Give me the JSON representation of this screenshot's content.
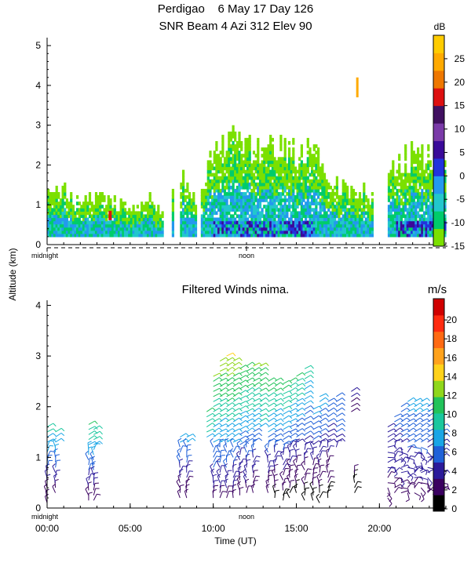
{
  "chart_data": [
    {
      "type": "heatmap",
      "title": "Perdigao    6 May 17 Day 126",
      "subtitle": "SNR Beam 4 Azi 312 Elev 90",
      "ylabel": "Altitude (km)",
      "y_ticks": [
        "0",
        "1",
        "2",
        "3",
        "4",
        "5"
      ],
      "ylim": [
        0,
        5.2
      ],
      "xlim_hours": [
        0,
        24
      ],
      "x_annotations": [
        "midnight",
        "noon"
      ],
      "colorbar": {
        "unit": "dB",
        "range": [
          -15,
          30
        ],
        "ticks": [
          "25",
          "20",
          "15",
          "10",
          "5",
          "0",
          "-5",
          "-10",
          "-15"
        ],
        "colors": [
          "#7be000",
          "#00cc6a",
          "#22c7cc",
          "#2399ee",
          "#2233dd",
          "#3a0a99",
          "#7a3aa8",
          "#401060",
          "#dd1010",
          "#ee7700",
          "#ffaa00",
          "#ffcc00"
        ]
      },
      "data_summary": {
        "echo_top_km_by_hour": [
          [
            0,
            1.4
          ],
          [
            1,
            1.4
          ],
          [
            2,
            1.1
          ],
          [
            3,
            1.2
          ],
          [
            4,
            1.1
          ],
          [
            5,
            1.0
          ],
          [
            6,
            1.2
          ],
          [
            7,
            0.8
          ],
          [
            8,
            2.0
          ],
          [
            9,
            1.1
          ],
          [
            10,
            2.6
          ],
          [
            11,
            2.8
          ],
          [
            12,
            2.7
          ],
          [
            13,
            2.6
          ],
          [
            14,
            2.5
          ],
          [
            15,
            2.4
          ],
          [
            16,
            2.5
          ],
          [
            17,
            1.6
          ],
          [
            18,
            1.5
          ],
          [
            19,
            1.4
          ],
          [
            20,
            1.1
          ],
          [
            21,
            2.3
          ],
          [
            22,
            2.4
          ],
          [
            23,
            2.4
          ]
        ],
        "strongest_layer_km": [
          0,
          0.8
        ],
        "strongest_values_db": [
          5,
          10
        ],
        "isolated_high_echo": {
          "hour": 18.6,
          "altitude_km": [
            3.7,
            4.2
          ],
          "db": 25
        }
      }
    },
    {
      "type": "heatmap",
      "title": "Filtered Winds nima.",
      "xlabel": "Time (UT)",
      "x_ticks": [
        "00:00",
        "05:00",
        "10:00",
        "15:00",
        "20:00"
      ],
      "xlim_hours": [
        0,
        24
      ],
      "x_annotations": [
        "midnight",
        "noon"
      ],
      "y_ticks": [
        "0",
        "1",
        "2",
        "3",
        "4"
      ],
      "ylim": [
        0,
        4.1
      ],
      "colorbar": {
        "unit": "m/s",
        "range": [
          0,
          22
        ],
        "ticks": [
          "20",
          "18",
          "16",
          "14",
          "12",
          "10",
          "8",
          "6",
          "4",
          "2",
          "0"
        ],
        "colors": [
          "#000000",
          "#3a0060",
          "#2b1a9a",
          "#1f60d8",
          "#19a5e6",
          "#1ac79e",
          "#22c35a",
          "#8fd71b",
          "#ffd21a",
          "#ffa21c",
          "#ff6a13",
          "#ff2b10",
          "#d00000"
        ]
      },
      "barb_groups": [
        {
          "hour": 0.0,
          "alt_from": 0.1,
          "alt_to": 1.6,
          "speed_from": 2,
          "speed_to": 10
        },
        {
          "hour": 0.5,
          "alt_from": 0.3,
          "alt_to": 1.55,
          "speed_from": 3,
          "speed_to": 10
        },
        {
          "hour": 2.5,
          "alt_from": 0.15,
          "alt_to": 1.65,
          "speed_from": 2,
          "speed_to": 11
        },
        {
          "hour": 2.8,
          "alt_from": 0.15,
          "alt_to": 1.6,
          "speed_from": 2,
          "speed_to": 11
        },
        {
          "hour": 8.0,
          "alt_from": 0.2,
          "alt_to": 1.4,
          "speed_from": 2,
          "speed_to": 8
        },
        {
          "hour": 8.4,
          "alt_from": 0.2,
          "alt_to": 1.4,
          "speed_from": 2,
          "speed_to": 8
        },
        {
          "hour": 9.6,
          "alt_from": 1.4,
          "alt_to": 1.9,
          "speed_from": 9,
          "speed_to": 11
        },
        {
          "hour": 10.0,
          "alt_from": 0.2,
          "alt_to": 2.6,
          "speed_from": 3,
          "speed_to": 13
        },
        {
          "hour": 10.4,
          "alt_from": 0.2,
          "alt_to": 2.9,
          "speed_from": 3,
          "speed_to": 14
        },
        {
          "hour": 10.8,
          "alt_from": 0.2,
          "alt_to": 3.05,
          "speed_from": 3,
          "speed_to": 15
        },
        {
          "hour": 11.2,
          "alt_from": 0.2,
          "alt_to": 2.95,
          "speed_from": 3,
          "speed_to": 14
        },
        {
          "hour": 11.6,
          "alt_from": 0.25,
          "alt_to": 2.8,
          "speed_from": 2,
          "speed_to": 13
        },
        {
          "hour": 12.0,
          "alt_from": 0.3,
          "alt_to": 2.85,
          "speed_from": 3,
          "speed_to": 13
        },
        {
          "hour": 12.4,
          "alt_from": 0.3,
          "alt_to": 2.8,
          "speed_from": 2,
          "speed_to": 13
        },
        {
          "hour": 12.8,
          "alt_from": 1.6,
          "alt_to": 2.85,
          "speed_from": 9,
          "speed_to": 13
        },
        {
          "hour": 13.3,
          "alt_from": 0.3,
          "alt_to": 2.5,
          "speed_from": 2,
          "speed_to": 12
        },
        {
          "hour": 13.7,
          "alt_from": 0.2,
          "alt_to": 2.5,
          "speed_from": 1,
          "speed_to": 12
        },
        {
          "hour": 14.2,
          "alt_from": 0.15,
          "alt_to": 2.5,
          "speed_from": 1,
          "speed_to": 12
        },
        {
          "hour": 14.6,
          "alt_from": 0.2,
          "alt_to": 2.5,
          "speed_from": 1,
          "speed_to": 11
        },
        {
          "hour": 15.0,
          "alt_from": 0.3,
          "alt_to": 2.6,
          "speed_from": 1,
          "speed_to": 11
        },
        {
          "hour": 15.5,
          "alt_from": 0.15,
          "alt_to": 2.75,
          "speed_from": 1,
          "speed_to": 10
        },
        {
          "hour": 16.0,
          "alt_from": 0.15,
          "alt_to": 2.0,
          "speed_from": 1,
          "speed_to": 8
        },
        {
          "hour": 16.4,
          "alt_from": 0.1,
          "alt_to": 2.2,
          "speed_from": 1,
          "speed_to": 8
        },
        {
          "hour": 16.9,
          "alt_from": 0.2,
          "alt_to": 2.1,
          "speed_from": 1,
          "speed_to": 7
        },
        {
          "hour": 17.4,
          "alt_from": 1.2,
          "alt_to": 2.2,
          "speed_from": 5,
          "speed_to": 7
        },
        {
          "hour": 18.3,
          "alt_from": 1.9,
          "alt_to": 2.3,
          "speed_from": 3,
          "speed_to": 4
        },
        {
          "hour": 18.5,
          "alt_from": 0.3,
          "alt_to": 0.7,
          "speed_from": 1,
          "speed_to": 2
        },
        {
          "hour": 20.5,
          "alt_from": 0.2,
          "alt_to": 1.6,
          "speed_from": 3,
          "speed_to": 5
        },
        {
          "hour": 20.9,
          "alt_from": 0.3,
          "alt_to": 1.8,
          "speed_from": 3,
          "speed_to": 6
        },
        {
          "hour": 21.3,
          "alt_from": 0.3,
          "alt_to": 2.0,
          "speed_from": 3,
          "speed_to": 7
        },
        {
          "hour": 21.7,
          "alt_from": 0.3,
          "alt_to": 2.1,
          "speed_from": 3,
          "speed_to": 8
        },
        {
          "hour": 22.1,
          "alt_from": 0.3,
          "alt_to": 2.1,
          "speed_from": 3,
          "speed_to": 8
        },
        {
          "hour": 22.5,
          "alt_from": 0.3,
          "alt_to": 2.1,
          "speed_from": 3,
          "speed_to": 8
        },
        {
          "hour": 22.9,
          "alt_from": 0.3,
          "alt_to": 2.0,
          "speed_from": 3,
          "speed_to": 7
        },
        {
          "hour": 23.3,
          "alt_from": 0.3,
          "alt_to": 1.8,
          "speed_from": 3,
          "speed_to": 7
        },
        {
          "hour": 23.7,
          "alt_from": 0.3,
          "alt_to": 1.6,
          "speed_from": 3,
          "speed_to": 6
        }
      ]
    }
  ]
}
